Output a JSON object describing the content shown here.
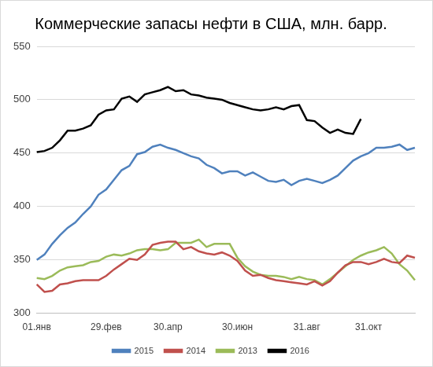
{
  "chart_data": {
    "type": "line",
    "title": "Коммерческие запасы нефти в США, млн. барр.",
    "categories": [
      "01.янв",
      null,
      null,
      null,
      null,
      null,
      null,
      null,
      null,
      "29.фев",
      null,
      null,
      null,
      null,
      null,
      null,
      null,
      "30.апр",
      null,
      null,
      null,
      null,
      null,
      null,
      null,
      null,
      "30.июн",
      null,
      null,
      null,
      null,
      null,
      null,
      null,
      null,
      "31.авг",
      null,
      null,
      null,
      null,
      null,
      null,
      null,
      "31.окт",
      null,
      null,
      null,
      null,
      null,
      null
    ],
    "series": [
      {
        "name": "2015",
        "color": "#4f81bd",
        "values": [
          350,
          355,
          365,
          373,
          380,
          385,
          393,
          400,
          411,
          416,
          425,
          434,
          438,
          449,
          451,
          456,
          458,
          455,
          453,
          450,
          447,
          445,
          439,
          436,
          431,
          433,
          433,
          429,
          432,
          428,
          424,
          423,
          425,
          420,
          424,
          426,
          424,
          422,
          425,
          429,
          436,
          443,
          447,
          450,
          455,
          455,
          456,
          458,
          453,
          455
        ]
      },
      {
        "name": "2014",
        "color": "#c0504d",
        "values": [
          327,
          320,
          321,
          327,
          328,
          330,
          331,
          331,
          331,
          335,
          341,
          346,
          351,
          350,
          355,
          364,
          366,
          367,
          367,
          360,
          362,
          358,
          356,
          355,
          357,
          354,
          349,
          340,
          335,
          336,
          333,
          331,
          330,
          329,
          328,
          327,
          330,
          326,
          330,
          338,
          345,
          348,
          348,
          346,
          348,
          351,
          348,
          347,
          354,
          352
        ]
      },
      {
        "name": "2013",
        "color": "#9bbb59",
        "values": [
          333,
          332,
          335,
          340,
          343,
          344,
          345,
          348,
          349,
          353,
          355,
          354,
          356,
          359,
          360,
          360,
          359,
          360,
          366,
          366,
          366,
          369,
          362,
          365,
          365,
          365,
          352,
          344,
          339,
          336,
          335,
          335,
          334,
          332,
          334,
          332,
          331,
          327,
          332,
          338,
          344,
          350,
          354,
          357,
          359,
          362,
          356,
          346,
          340,
          331
        ]
      },
      {
        "name": "2016",
        "color": "#000000",
        "values": [
          451,
          452,
          455,
          462,
          471,
          471,
          473,
          476,
          486,
          490,
          491,
          501,
          503,
          498,
          505,
          507,
          509,
          512,
          508,
          509,
          505,
          504,
          502,
          501,
          500,
          497,
          495,
          493,
          491,
          490,
          491,
          493,
          491,
          494,
          495,
          481,
          480,
          474,
          469,
          472,
          469,
          468,
          482,
          null,
          null,
          null,
          null,
          null,
          null,
          null
        ]
      }
    ],
    "ylim": [
      300,
      550
    ],
    "yticks": [
      300,
      350,
      400,
      450,
      500,
      550
    ],
    "grid": true,
    "legend": "bottom"
  }
}
